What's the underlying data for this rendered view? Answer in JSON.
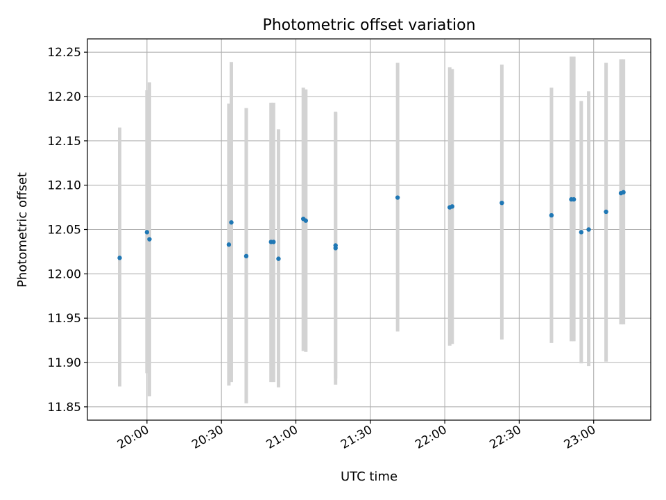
{
  "chart_data": {
    "type": "scatter",
    "title": "Photometric offset variation",
    "xlabel": "UTC time",
    "ylabel": "Photometric offset",
    "x_unit": "HH:MM UTC",
    "xlim": [
      "19:36",
      "23:23"
    ],
    "ylim": [
      11.835,
      12.265
    ],
    "xticks": [
      "20:00",
      "20:30",
      "21:00",
      "21:30",
      "22:00",
      "22:30",
      "23:00"
    ],
    "yticks": [
      "11.85",
      "11.90",
      "11.95",
      "12.00",
      "12.05",
      "12.10",
      "12.15",
      "12.20",
      "12.25"
    ],
    "grid": true,
    "point_color": "#1f77b4",
    "errorbar_color": "#d3d3d3",
    "points": [
      {
        "x": "19:49",
        "y": 12.018,
        "low": 11.873,
        "high": 12.165
      },
      {
        "x": "20:00",
        "y": 12.047,
        "low": 11.888,
        "high": 12.207
      },
      {
        "x": "20:01",
        "y": 12.039,
        "low": 11.862,
        "high": 12.216
      },
      {
        "x": "20:33",
        "y": 12.033,
        "low": 11.874,
        "high": 12.192
      },
      {
        "x": "20:34",
        "y": 12.058,
        "low": 11.878,
        "high": 12.239
      },
      {
        "x": "20:40",
        "y": 12.02,
        "low": 11.854,
        "high": 12.187
      },
      {
        "x": "20:50",
        "y": 12.036,
        "low": 11.878,
        "high": 12.193
      },
      {
        "x": "20:51",
        "y": 12.036,
        "low": 11.878,
        "high": 12.193
      },
      {
        "x": "20:53",
        "y": 12.017,
        "low": 11.872,
        "high": 12.163
      },
      {
        "x": "21:03",
        "y": 12.062,
        "low": 11.913,
        "high": 12.21
      },
      {
        "x": "21:04",
        "y": 12.06,
        "low": 11.912,
        "high": 12.208
      },
      {
        "x": "21:16",
        "y": 12.029,
        "low": 11.875,
        "high": 12.183
      },
      {
        "x": "21:16",
        "y": 12.032,
        "low": 11.882,
        "high": 12.182
      },
      {
        "x": "21:41",
        "y": 12.086,
        "low": 11.935,
        "high": 12.238
      },
      {
        "x": "22:02",
        "y": 12.075,
        "low": 11.919,
        "high": 12.233
      },
      {
        "x": "22:03",
        "y": 12.076,
        "low": 11.921,
        "high": 12.231
      },
      {
        "x": "22:23",
        "y": 12.08,
        "low": 11.926,
        "high": 12.236
      },
      {
        "x": "22:43",
        "y": 12.066,
        "low": 11.922,
        "high": 12.21
      },
      {
        "x": "22:51",
        "y": 12.084,
        "low": 11.924,
        "high": 12.245
      },
      {
        "x": "22:52",
        "y": 12.084,
        "low": 11.924,
        "high": 12.245
      },
      {
        "x": "22:55",
        "y": 12.047,
        "low": 11.899,
        "high": 12.195
      },
      {
        "x": "22:58",
        "y": 12.05,
        "low": 11.896,
        "high": 12.206
      },
      {
        "x": "23:05",
        "y": 12.07,
        "low": 11.901,
        "high": 12.238
      },
      {
        "x": "23:11",
        "y": 12.091,
        "low": 11.943,
        "high": 12.242
      },
      {
        "x": "23:12",
        "y": 12.092,
        "low": 11.943,
        "high": 12.242
      }
    ]
  }
}
